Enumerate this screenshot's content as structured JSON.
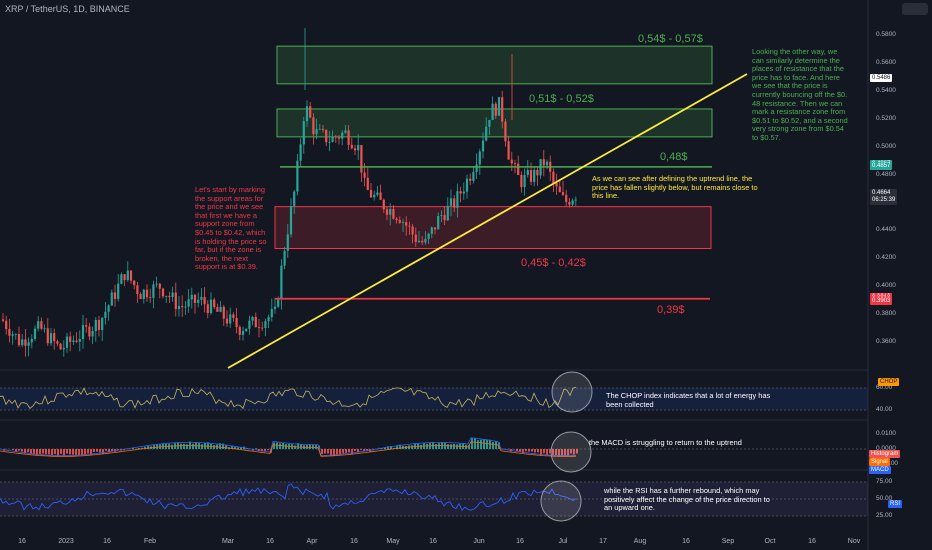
{
  "header": {
    "title": "XRP / TetherUS, 1D, BINANCE"
  },
  "chart_data": {
    "type": "candlestick",
    "symbol": "XRP / TetherUS",
    "interval": "1D",
    "exchange": "BINANCE",
    "price_axis": {
      "ticks": [
        "0.5800",
        "0.5600",
        "0.5400",
        "0.5200",
        "0.5000",
        "0.4800",
        "0.4600",
        "0.4400",
        "0.4200",
        "0.4000",
        "0.3800",
        "0.3600"
      ],
      "range": [
        0.35,
        0.59
      ]
    },
    "time_axis": {
      "ticks": [
        "16",
        "2023",
        "16",
        "Feb",
        "Mar",
        "16",
        "Apr",
        "16",
        "May",
        "16",
        "Jun",
        "16",
        "Jul",
        "17",
        "Aug",
        "16",
        "Sep",
        "Oct",
        "16",
        "Nov"
      ]
    },
    "price_tags": [
      {
        "label": "0.5486",
        "value": 0.5486,
        "color": "#ffffff",
        "text_color": "#131722"
      },
      {
        "label": "0.4867",
        "value": 0.4867,
        "color": "#26a69a",
        "text_color": "#ffffff"
      },
      {
        "label": "0.4857",
        "value": 0.4857,
        "color": "#26a69a",
        "text_color": "#ffffff"
      },
      {
        "label": "0.4664",
        "value": 0.4664,
        "color": "#2a2e39",
        "text_color": "#ffffff",
        "sub": "06:25:39"
      },
      {
        "label": "0.3913",
        "value": 0.3913,
        "color": "#f23645",
        "text_color": "#ffffff"
      },
      {
        "label": "0.3912",
        "value": 0.3905,
        "color": "#f23645",
        "text_color": "#ffffff"
      },
      {
        "label": "0.3903",
        "value": 0.3897,
        "color": "#f23645",
        "text_color": "#ffffff"
      },
      {
        "label": "0.3903",
        "value": 0.3889,
        "color": "#f23645",
        "text_color": "#ffffff"
      }
    ],
    "zones": [
      {
        "label": "0,54$ - 0,57$",
        "low": 0.545,
        "high": 0.572,
        "kind": "resistance"
      },
      {
        "label": "0,51$ - 0,52$",
        "low": 0.507,
        "high": 0.527,
        "kind": "resistance"
      },
      {
        "label": "0,45$ - 0,42$",
        "low": 0.427,
        "high": 0.457,
        "kind": "support"
      }
    ],
    "levels": [
      {
        "label": "0,48$",
        "value": 0.4855,
        "color": "#4caf50"
      },
      {
        "label": "0,39$",
        "value": 0.391,
        "color": "#f23645"
      }
    ],
    "trendline": {
      "label": "uptrend",
      "color": "#ffeb3b"
    },
    "indicators": [
      {
        "name": "CHOP",
        "ticks": [
          "60.00",
          "40.00"
        ],
        "color": "#c9b458"
      },
      {
        "name": "MACD",
        "ticks": [
          "0.0100",
          "0.0000",
          "-0.0100"
        ],
        "legend": [
          "Histogram",
          "Signal",
          "MACD"
        ]
      },
      {
        "name": "RSI",
        "ticks": [
          "75.00",
          "50.00",
          "25.00"
        ],
        "color": "#2962ff"
      }
    ]
  },
  "annotations": {
    "resistance_note": "Looking the other way, we can similarly determine the places of resistance that the price has to face. And here we see that the price is currently bouncing off the $0. 48 resistance. Then we can mark a resistance zone from $0.51 to $0.52, and a second very strong zone from $0.54 to $0.57.",
    "support_note": "Let's start by marking the support areas for the price and we see that first we have a support zone from $0.45 to $0.42, which is holding the price so far, but if the zone is broken, the next support is at $0.39.",
    "trendline_note": "As we can see after defining the uptrend line, the price has fallen slightly below, but remains close to this line.",
    "chop_note": "The CHOP index indicates that a lot of energy has been collected",
    "macd_note": "the MACD is struggling to return to the uptrend",
    "rsi_note": "while the RSI has a further rebound, which may positively affect the change of the price direction to an upward one."
  }
}
